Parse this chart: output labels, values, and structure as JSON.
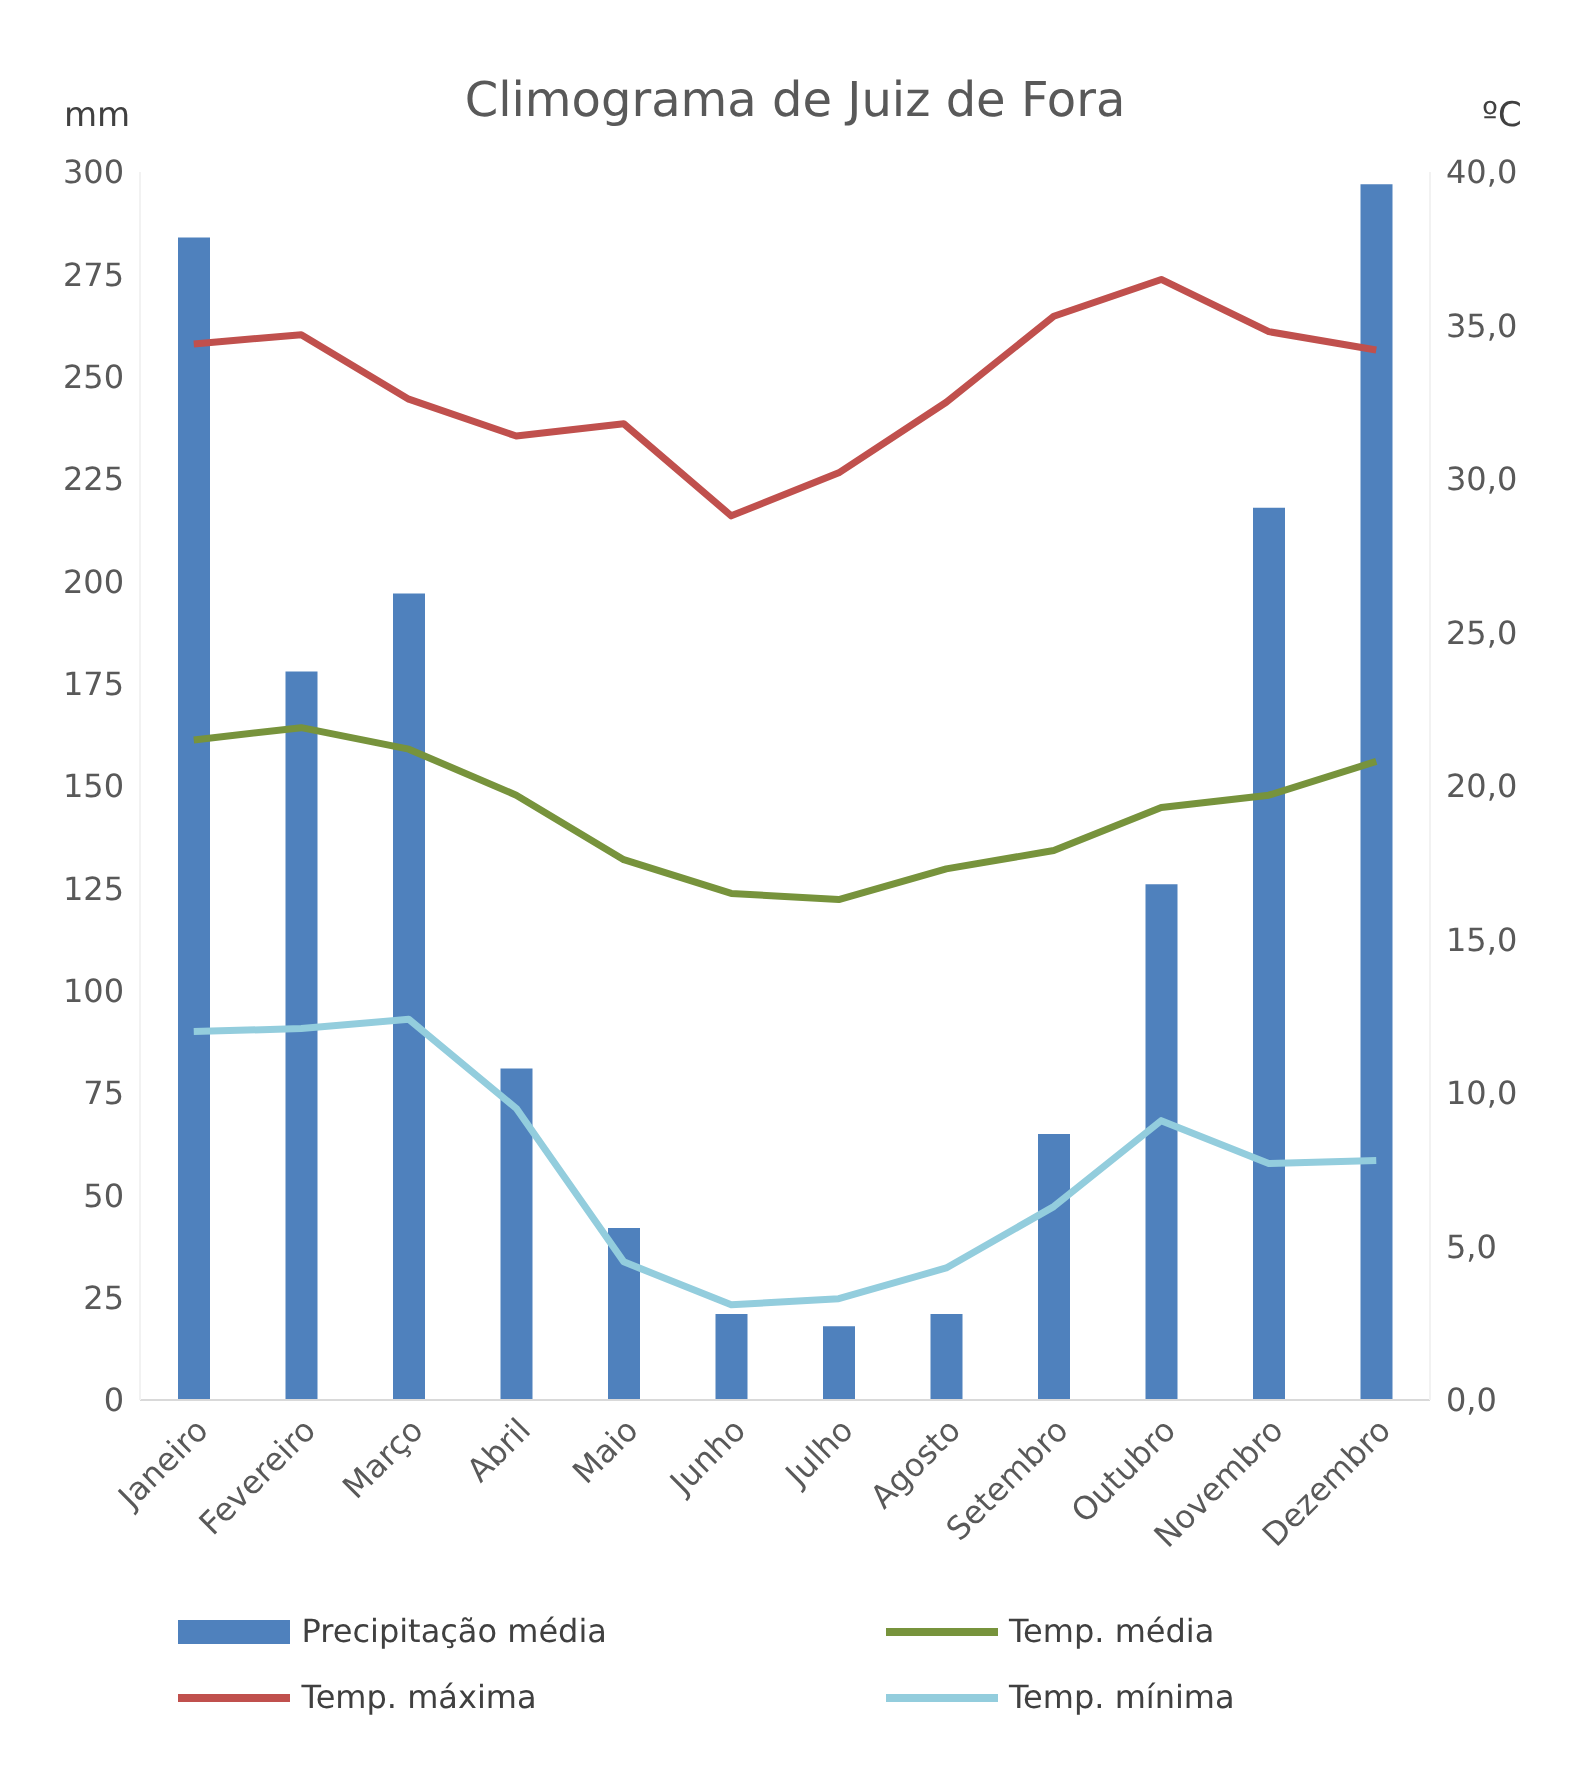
{
  "chart_data": {
    "type": "bar",
    "title": "Climograma de Juiz de Fora",
    "ylabel": "mm",
    "y2label": "ºC",
    "categories": [
      "Janeiro",
      "Fevereiro",
      "Março",
      "Abril",
      "Maio",
      "Junho",
      "Julho",
      "Agosto",
      "Setembro",
      "Outubro",
      "Novembro",
      "Dezembro"
    ],
    "series": [
      {
        "name": "Precipitação média",
        "color": "#4f81bd",
        "values": [
          284,
          178,
          197,
          81,
          42,
          21,
          18,
          21,
          65,
          126,
          218,
          297
        ]
      },
      {
        "name": "Temp. média",
        "type": "line",
        "axis": "y2",
        "color": "#77933c",
        "values": [
          21.5,
          21.9,
          21.2,
          19.7,
          17.6,
          16.5,
          16.3,
          17.3,
          17.9,
          19.3,
          19.7,
          20.8
        ]
      },
      {
        "name": "Temp. máxima",
        "type": "line",
        "axis": "y2",
        "color": "#c0504d",
        "values": [
          34.4,
          34.7,
          32.6,
          31.4,
          31.8,
          28.8,
          30.2,
          32.5,
          35.3,
          36.5,
          34.8,
          34.2
        ]
      },
      {
        "name": "Temp. mínima",
        "type": "line",
        "axis": "y2",
        "color": "#93cddd",
        "values": [
          12.0,
          12.1,
          12.4,
          9.5,
          4.5,
          3.1,
          3.3,
          4.3,
          6.3,
          9.1,
          7.7,
          7.8
        ]
      }
    ],
    "ylim": [
      0,
      300
    ],
    "yticks": [
      0,
      25,
      50,
      75,
      100,
      125,
      150,
      175,
      200,
      225,
      250,
      275,
      300
    ],
    "y2lim": [
      0,
      40
    ],
    "y2ticks": [
      {
        "value": 0,
        "label": "0,0"
      },
      {
        "value": 5,
        "label": "5,0"
      },
      {
        "value": 10,
        "label": "10,0"
      },
      {
        "value": 15,
        "label": "15,0"
      },
      {
        "value": 20,
        "label": "20,0"
      },
      {
        "value": 25,
        "label": "25,0"
      },
      {
        "value": 30,
        "label": "30,0"
      },
      {
        "value": 35,
        "label": "35,0"
      },
      {
        "value": 40,
        "label": "40,0"
      }
    ],
    "grid": false,
    "legend": "bottom",
    "marker": "none",
    "line_style": "solid"
  }
}
